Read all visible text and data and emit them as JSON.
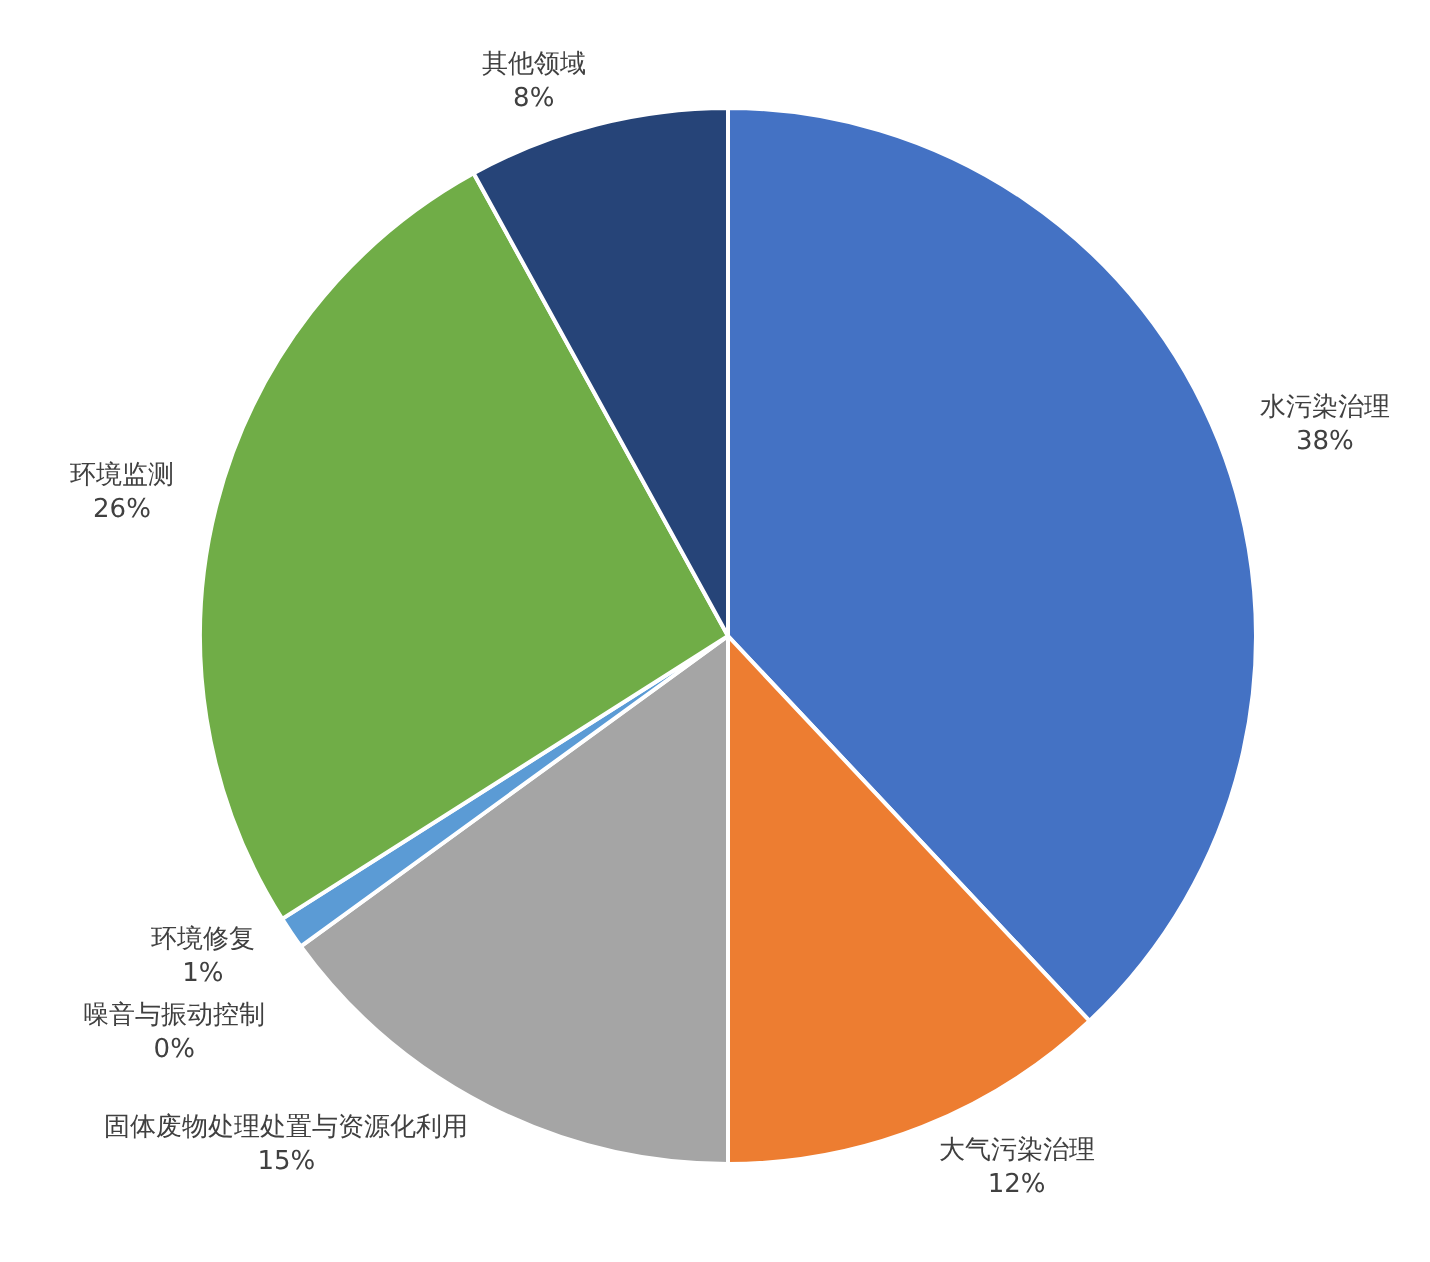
{
  "chart_data": {
    "type": "pie",
    "categories": [
      "水污染治理",
      "大气污染治理",
      "固体废物处理处置与资源化利用",
      "噪音与振动控制",
      "环境修复",
      "环境监测",
      "其他领域"
    ],
    "values": [
      38,
      12,
      15,
      0,
      1,
      26,
      8
    ],
    "value_labels": [
      "38%",
      "12%",
      "15%",
      "0%",
      "1%",
      "26%",
      "8%"
    ],
    "colors": [
      "#4472c4",
      "#ed7d31",
      "#a5a5a5",
      "#ffc000",
      "#5b9bd5",
      "#70ad47",
      "#264478"
    ],
    "legend": false
  }
}
